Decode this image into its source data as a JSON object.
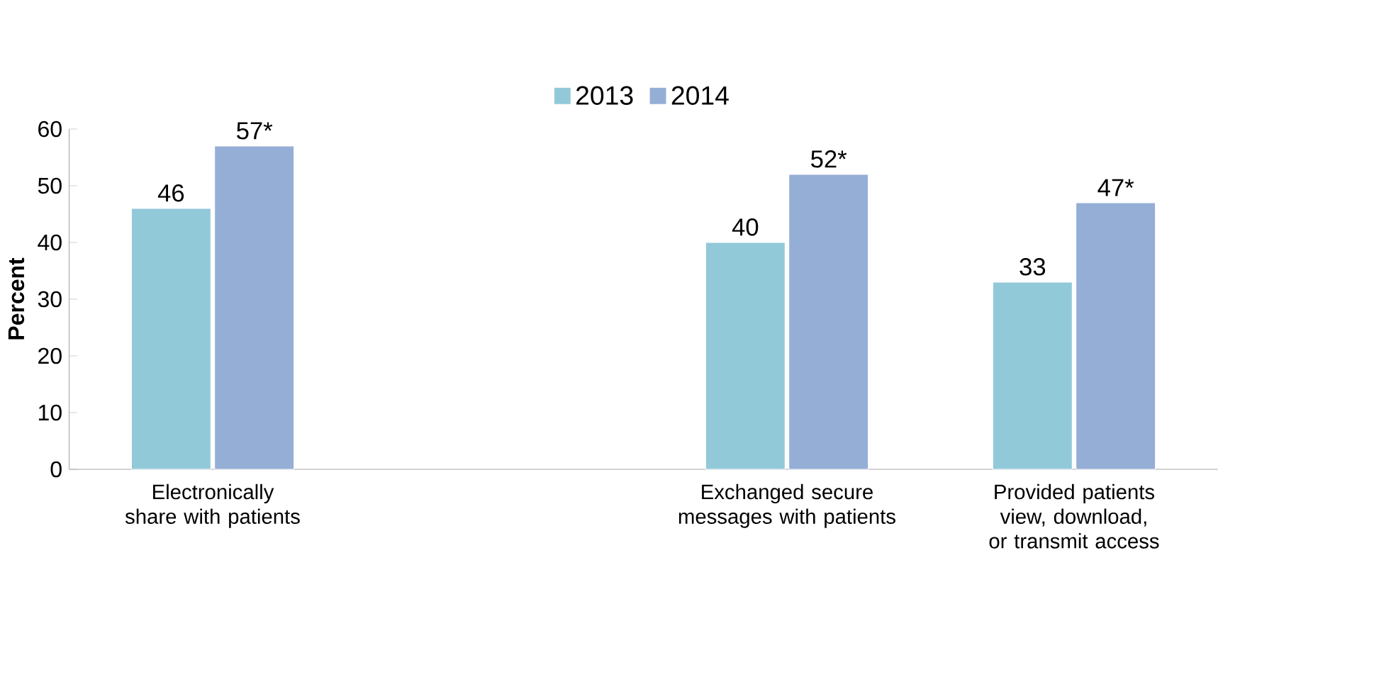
{
  "chart_data": {
    "type": "bar",
    "ylabel": "Percent",
    "categories": [
      "Electronically share with patients",
      null,
      "Exchanged secure messages with patients",
      "Provided patients view, download, or transmit access"
    ],
    "series": [
      {
        "name": "2013",
        "color": "#92c9d9",
        "values": [
          46,
          null,
          40,
          33
        ],
        "value_labels": [
          "46",
          null,
          "40",
          "33"
        ]
      },
      {
        "name": "2014",
        "color": "#95aed6",
        "values": [
          57,
          null,
          52,
          47
        ],
        "value_labels": [
          "57*",
          null,
          "52*",
          "47*"
        ]
      }
    ],
    "ylim": [
      0,
      60
    ],
    "yticks": [
      0,
      10,
      20,
      30,
      40,
      50,
      60
    ],
    "grid": false,
    "legend": "top"
  }
}
